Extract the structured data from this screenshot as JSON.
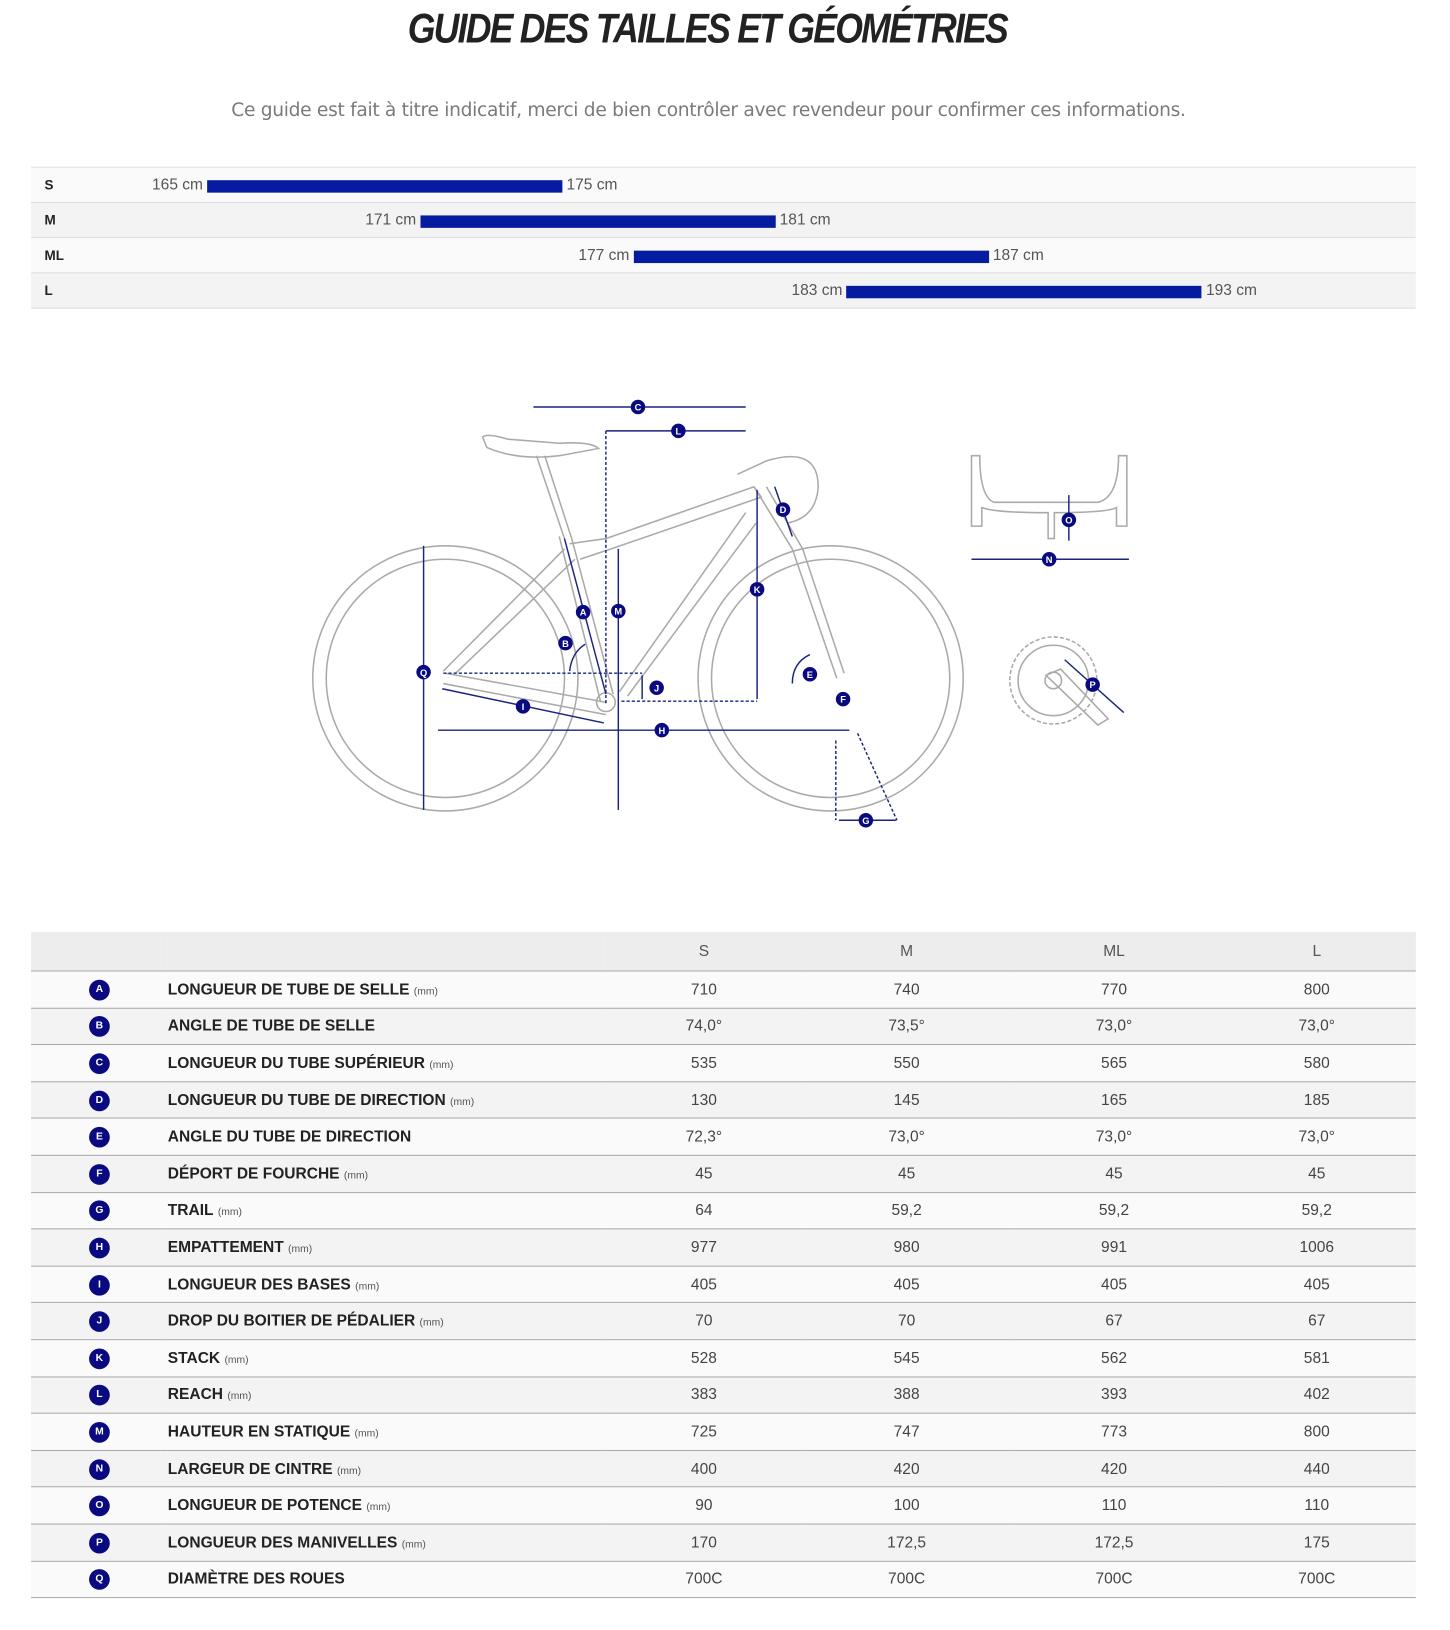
{
  "title": "GUIDE DES TAILLES ET GÉOMÉTRIES",
  "subtitle": "Ce guide est fait à titre indicatif, merci de bien contrôler avec revendeur pour confirmer ces informations.",
  "colors": {
    "accent": "#051ca0",
    "badge": "#0a0a80",
    "diagram_line": "#1a237e"
  },
  "size_guide": [
    {
      "size": "S",
      "min": 165,
      "max": 175,
      "min_label": "165 cm",
      "max_label": "175 cm"
    },
    {
      "size": "M",
      "min": 171,
      "max": 181,
      "min_label": "171 cm",
      "max_label": "181 cm"
    },
    {
      "size": "ML",
      "min": 177,
      "max": 187,
      "min_label": "177 cm",
      "max_label": "187 cm"
    },
    {
      "size": "L",
      "min": 183,
      "max": 193,
      "min_label": "183 cm",
      "max_label": "193 cm"
    }
  ],
  "diagram_labels": [
    "A",
    "B",
    "C",
    "D",
    "E",
    "F",
    "G",
    "H",
    "I",
    "J",
    "K",
    "L",
    "M",
    "N",
    "O",
    "P",
    "Q"
  ],
  "table": {
    "columns": [
      "S",
      "M",
      "ML",
      "L"
    ],
    "rows": [
      {
        "key": "A",
        "name": "LONGUEUR DE TUBE DE SELLE",
        "unit": "(mm)",
        "values": [
          "710",
          "740",
          "770",
          "800"
        ]
      },
      {
        "key": "B",
        "name": "ANGLE DE TUBE DE SELLE",
        "unit": "",
        "values": [
          "74,0°",
          "73,5°",
          "73,0°",
          "73,0°"
        ]
      },
      {
        "key": "C",
        "name": "LONGUEUR DU TUBE SUPÉRIEUR",
        "unit": "(mm)",
        "values": [
          "535",
          "550",
          "565",
          "580"
        ]
      },
      {
        "key": "D",
        "name": "LONGUEUR DU TUBE DE DIRECTION",
        "unit": "(mm)",
        "values": [
          "130",
          "145",
          "165",
          "185"
        ]
      },
      {
        "key": "E",
        "name": "ANGLE DU TUBE DE DIRECTION",
        "unit": "",
        "values": [
          "72,3°",
          "73,0°",
          "73,0°",
          "73,0°"
        ]
      },
      {
        "key": "F",
        "name": "DÉPORT DE FOURCHE",
        "unit": "(mm)",
        "values": [
          "45",
          "45",
          "45",
          "45"
        ]
      },
      {
        "key": "G",
        "name": "TRAIL",
        "unit": "(mm)",
        "values": [
          "64",
          "59,2",
          "59,2",
          "59,2"
        ]
      },
      {
        "key": "H",
        "name": "EMPATTEMENT",
        "unit": "(mm)",
        "values": [
          "977",
          "980",
          "991",
          "1006"
        ]
      },
      {
        "key": "I",
        "name": "LONGUEUR DES BASES",
        "unit": "(mm)",
        "values": [
          "405",
          "405",
          "405",
          "405"
        ]
      },
      {
        "key": "J",
        "name": "DROP DU BOITIER DE PÉDALIER",
        "unit": "(mm)",
        "values": [
          "70",
          "70",
          "67",
          "67"
        ]
      },
      {
        "key": "K",
        "name": "STACK",
        "unit": "(mm)",
        "values": [
          "528",
          "545",
          "562",
          "581"
        ]
      },
      {
        "key": "L",
        "name": "REACH",
        "unit": "(mm)",
        "values": [
          "383",
          "388",
          "393",
          "402"
        ]
      },
      {
        "key": "M",
        "name": "HAUTEUR EN STATIQUE",
        "unit": "(mm)",
        "values": [
          "725",
          "747",
          "773",
          "800"
        ]
      },
      {
        "key": "N",
        "name": "LARGEUR DE CINTRE",
        "unit": "(mm)",
        "values": [
          "400",
          "420",
          "420",
          "440"
        ]
      },
      {
        "key": "O",
        "name": "LONGUEUR DE POTENCE",
        "unit": "(mm)",
        "values": [
          "90",
          "100",
          "110",
          "110"
        ]
      },
      {
        "key": "P",
        "name": "LONGUEUR DES MANIVELLES",
        "unit": "(mm)",
        "values": [
          "170",
          "172,5",
          "172,5",
          "175"
        ]
      },
      {
        "key": "Q",
        "name": "DIAMÈTRE DES ROUES",
        "unit": "",
        "values": [
          "700C",
          "700C",
          "700C",
          "700C"
        ]
      }
    ]
  }
}
